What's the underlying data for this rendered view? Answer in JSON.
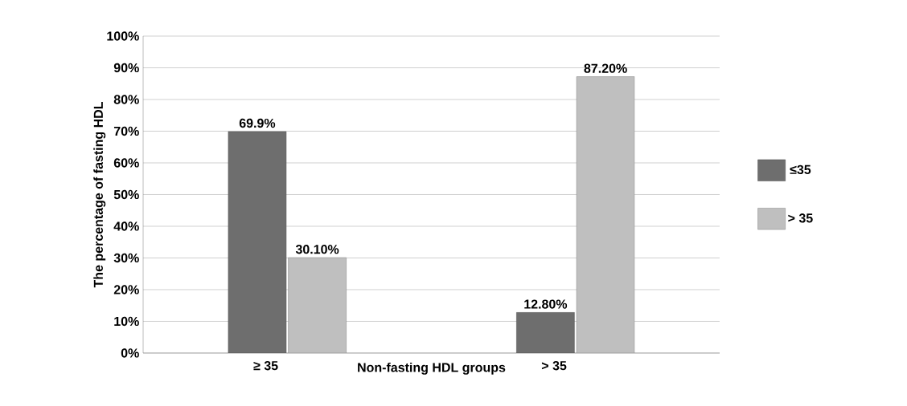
{
  "chart_data": {
    "type": "bar",
    "xlabel": "Non-fasting HDL groups",
    "ylabel": "The percentage of fasting HDL",
    "categories": [
      "≥ 35",
      "> 35"
    ],
    "series": [
      {
        "name": "≤35",
        "color": "#6e6e6e",
        "values": [
          69.9,
          12.8
        ],
        "value_labels": [
          "69.9%",
          "12.80%"
        ]
      },
      {
        "name": "> 35",
        "color": "#bfbfbf",
        "values": [
          30.1,
          87.2
        ],
        "value_labels": [
          "30.10%",
          "87.20%"
        ]
      }
    ],
    "ylim": [
      0,
      100
    ],
    "yticks": [
      {
        "value": 0,
        "label": "0%"
      },
      {
        "value": 10,
        "label": "10%"
      },
      {
        "value": 20,
        "label": "20%"
      },
      {
        "value": 30,
        "label": "30%"
      },
      {
        "value": 40,
        "label": "40%"
      },
      {
        "value": 50,
        "label": "50%"
      },
      {
        "value": 60,
        "label": "60%"
      },
      {
        "value": 70,
        "label": "70%"
      },
      {
        "value": 80,
        "label": "80%"
      },
      {
        "value": 90,
        "label": "90%"
      },
      {
        "value": 100,
        "label": "100%"
      }
    ],
    "grid": "y",
    "legend": "right"
  }
}
